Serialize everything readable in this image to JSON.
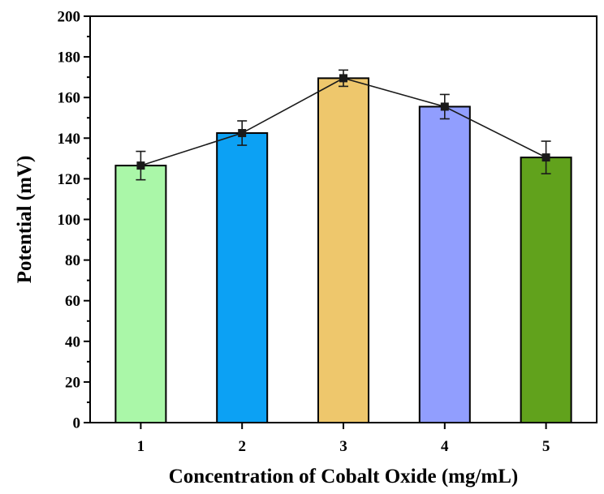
{
  "chart_data": {
    "type": "bar",
    "title": "",
    "xlabel": "Concentration of Cobalt Oxide (mg/mL)",
    "ylabel": "Potential (mV)",
    "categories": [
      "1",
      "2",
      "3",
      "4",
      "5"
    ],
    "values": [
      126.5,
      142.5,
      169.5,
      155.5,
      130.5
    ],
    "errors": [
      7,
      6,
      4,
      6,
      8
    ],
    "bar_colors": [
      "#aaf7a8",
      "#0ca1f4",
      "#eec76c",
      "#919efe",
      "#61a21c"
    ],
    "line_color": "#1a1a1a",
    "overlay_line": true,
    "ylim": [
      0,
      200
    ],
    "yticks": [
      0,
      20,
      40,
      60,
      80,
      100,
      120,
      140,
      160,
      180,
      200
    ],
    "grid": false,
    "legend": "none"
  }
}
